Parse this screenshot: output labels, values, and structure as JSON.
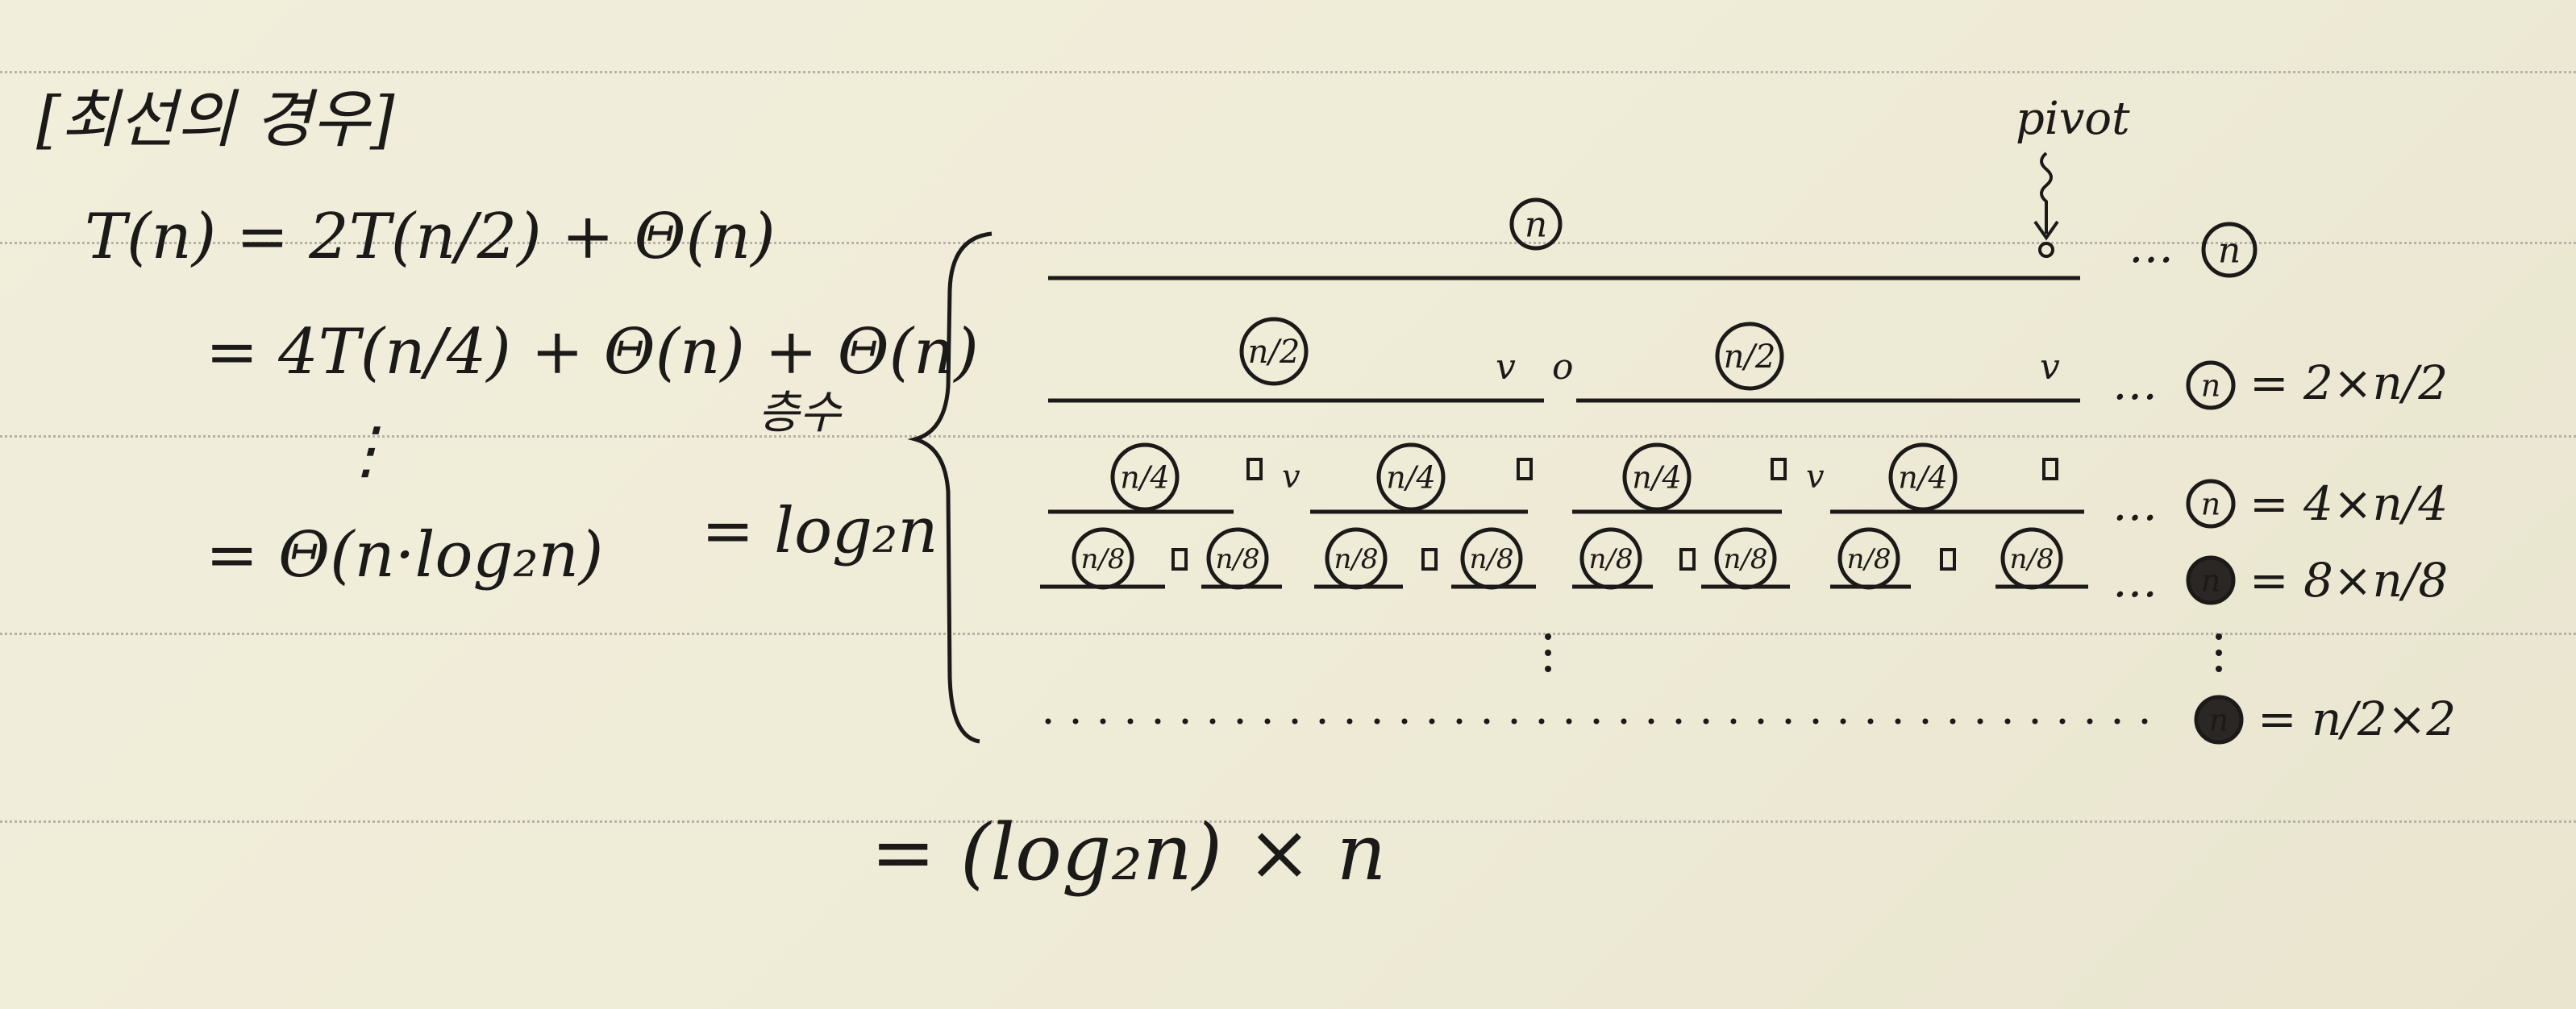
{
  "heading": "[최선의 경우]",
  "equations": {
    "line1": "T(n) = 2T(n/2) + Θ(n)",
    "line2": "= 4T(n/4) + Θ(n) + Θ(n)",
    "vdots": "⋮",
    "line3": "= Θ(n·log₂n)"
  },
  "depth": {
    "label": "층수",
    "value": "= log₂n"
  },
  "total": "= (log₂n) × n",
  "pivot_label": "pivot",
  "tree": {
    "root": "n",
    "level2": "n/2",
    "level4": "n/4",
    "level8": "n/8",
    "row_sums": [
      "n",
      "n = 2×n/2",
      "n = 4×n/4",
      "n = 8×n/8",
      "n = n/2×2"
    ],
    "ellipsis": "…",
    "mark_v": "v",
    "mark_o": "o"
  }
}
